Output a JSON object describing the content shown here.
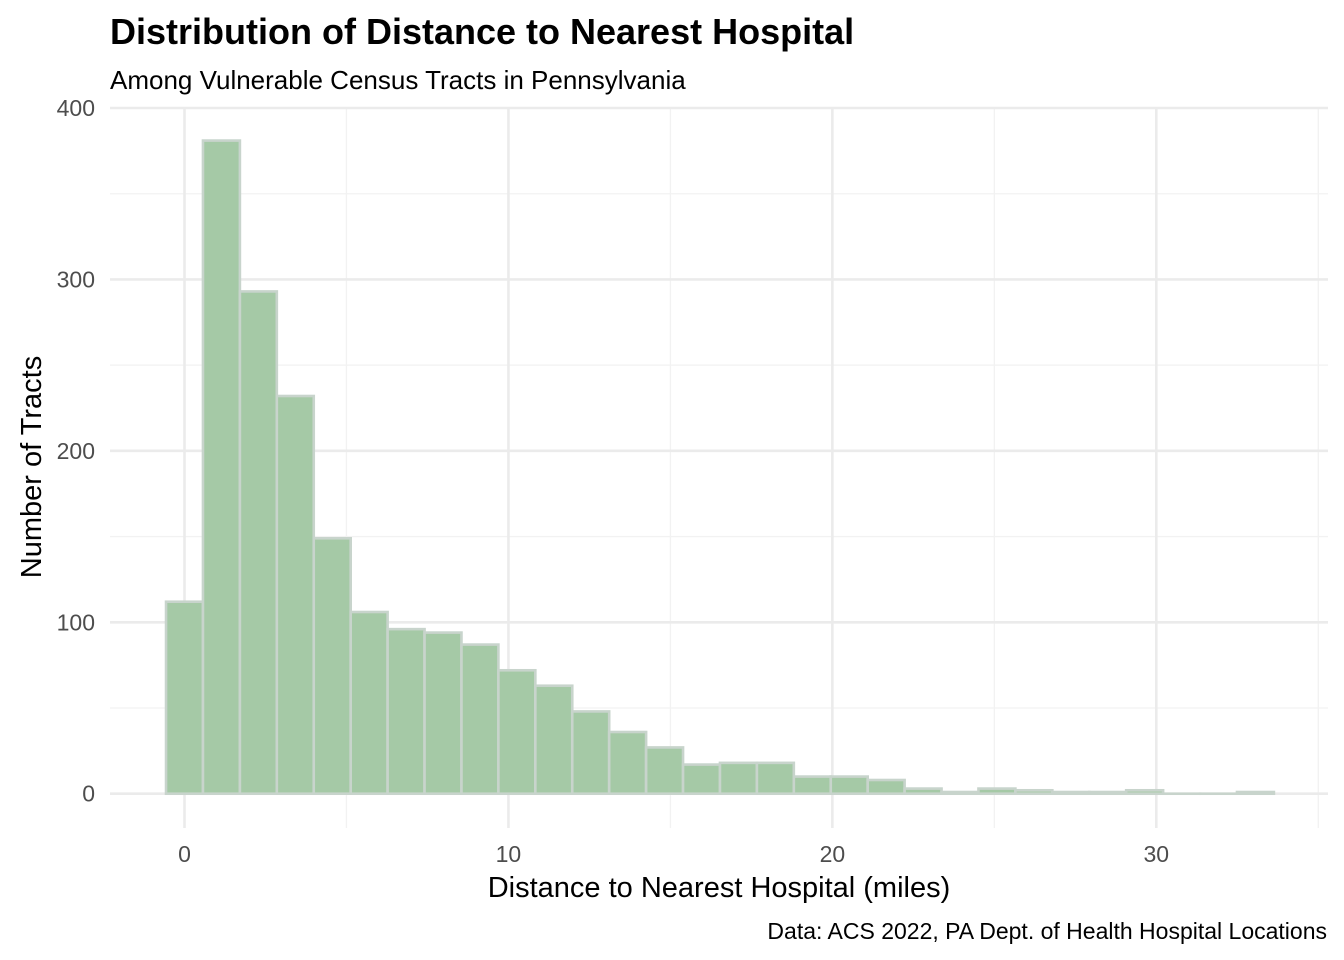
{
  "chart_data": {
    "type": "bar",
    "title": "Distribution of Distance to Nearest Hospital",
    "subtitle": "Among Vulnerable Census Tracts in Pennsylvania",
    "xlabel": "Distance to Nearest Hospital (miles)",
    "ylabel": "Number of Tracts",
    "caption": "Data: ACS 2022, PA Dept. of Health Hospital Locations",
    "xlim": [
      -2.3,
      35.3
    ],
    "ylim": [
      -20,
      400
    ],
    "x_ticks": [
      0,
      10,
      20,
      30
    ],
    "x_tick_labels": [
      "0",
      "10",
      "20",
      "30"
    ],
    "y_ticks": [
      0,
      100,
      200,
      300,
      400
    ],
    "y_tick_labels": [
      "0",
      "100",
      "200",
      "300",
      "400"
    ],
    "grid": true,
    "bin_width": 1.14,
    "bin_centers": [
      0.0,
      1.14,
      2.28,
      3.42,
      4.56,
      5.7,
      6.84,
      7.98,
      9.12,
      10.26,
      11.4,
      12.54,
      13.68,
      14.82,
      15.96,
      17.1,
      18.24,
      19.38,
      20.52,
      21.66,
      22.8,
      23.94,
      25.08,
      26.22,
      27.36,
      28.5,
      29.64,
      30.78,
      31.92,
      33.06
    ],
    "values": [
      112,
      381,
      293,
      232,
      149,
      106,
      96,
      94,
      87,
      72,
      63,
      48,
      36,
      27,
      17,
      18,
      18,
      10,
      10,
      8,
      3,
      1,
      3,
      2,
      1,
      1,
      2,
      0,
      0,
      1
    ],
    "colors": {
      "fill": "#a5c9a6",
      "outline": "#c8d4cc"
    }
  }
}
